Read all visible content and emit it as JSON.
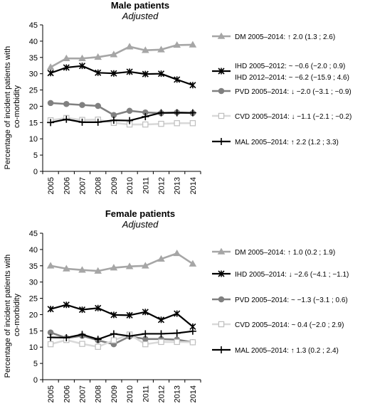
{
  "chart_data": [
    {
      "type": "line",
      "title": "Male patients",
      "subtitle": "Adjusted",
      "ylabel": "Percentage of incident patients with co-morbidity",
      "xlabel": "",
      "ylim": [
        0,
        45
      ],
      "yticks": [
        0,
        5,
        10,
        15,
        20,
        25,
        30,
        35,
        40,
        45
      ],
      "categories": [
        "2005",
        "2006",
        "2007",
        "2008",
        "2009",
        "2010",
        "2011",
        "2012",
        "2013",
        "2014"
      ],
      "grid": false,
      "legend_position": "right",
      "series": [
        {
          "name": "DM",
          "marker": "triangle",
          "color": "#a6a6a6",
          "values": [
            32.0,
            34.7,
            34.7,
            35.1,
            35.9,
            38.3,
            37.2,
            37.4,
            38.8,
            38.9
          ],
          "legend": [
            "DM  2005–2014:  ↑ 2.0 (1.3 ; 2.6)"
          ]
        },
        {
          "name": "IHD",
          "marker": "asterisk",
          "color": "#000000",
          "values": [
            30.2,
            31.9,
            32.4,
            30.3,
            30.1,
            30.6,
            29.9,
            30.0,
            28.2,
            26.5
          ],
          "legend": [
            "IHD  2005–2012:  ~ −0.6 (−2.0 ; 0.9)",
            "IHD  2012–2014:  ~ −6.2 (−15.9 ; 4.6)"
          ]
        },
        {
          "name": "PVD",
          "marker": "circle",
          "color": "#808080",
          "values": [
            21.0,
            20.7,
            20.4,
            20.1,
            17.3,
            18.6,
            18.1,
            17.9,
            18.1,
            17.9
          ],
          "legend": [
            "PVD  2005–2014:  ↓ −2.0 (−3.1 ; −0.9)"
          ]
        },
        {
          "name": "CVD",
          "marker": "square",
          "color": "#d9d9d9",
          "values": [
            15.7,
            16.4,
            15.8,
            15.9,
            14.9,
            14.4,
            14.4,
            14.6,
            14.8,
            14.8
          ],
          "legend": [
            "CVD  2005–2014:  ↓ −1.1 (−2.1 ; −0.2)"
          ]
        },
        {
          "name": "MAL",
          "marker": "plus",
          "color": "#000000",
          "values": [
            15.0,
            16.0,
            15.1,
            15.1,
            15.7,
            15.6,
            16.8,
            18.0,
            18.0,
            18.0
          ],
          "legend": [
            "MAL  2005–2014:  ↑ 2.2 (1.2 ; 3.3)"
          ]
        }
      ]
    },
    {
      "type": "line",
      "title": "Female patients",
      "subtitle": "Adjusted",
      "ylabel": "Percentage of incident patients with co-morbidity",
      "xlabel": "",
      "ylim": [
        0,
        45
      ],
      "yticks": [
        0,
        5,
        10,
        15,
        20,
        25,
        30,
        35,
        40,
        45
      ],
      "categories": [
        "2005",
        "2006",
        "2007",
        "2008",
        "2009",
        "2010",
        "2011",
        "2012",
        "2013",
        "2014"
      ],
      "grid": false,
      "legend_position": "right",
      "series": [
        {
          "name": "DM",
          "marker": "triangle",
          "color": "#a6a6a6",
          "values": [
            35.0,
            34.1,
            33.7,
            33.4,
            34.4,
            34.8,
            35.0,
            37.1,
            38.8,
            35.6
          ],
          "legend": [
            "DM  2005–2014:  ↑ 1.0 (0.2 ; 1.9)"
          ]
        },
        {
          "name": "IHD",
          "marker": "asterisk",
          "color": "#000000",
          "values": [
            21.7,
            23.0,
            21.5,
            22.0,
            19.9,
            19.8,
            20.8,
            18.4,
            20.3,
            16.3
          ],
          "legend": [
            "IHD  2005–2014:  ↓ −2.6 (−4.1 ; −1.1)"
          ]
        },
        {
          "name": "PVD",
          "marker": "circle",
          "color": "#808080",
          "values": [
            14.5,
            12.8,
            13.5,
            12.1,
            10.9,
            13.3,
            12.5,
            12.5,
            12.3,
            11.5
          ],
          "legend": [
            "PVD  2005–2014:  ~ −1.3 (−3.1 ; 0.6)"
          ]
        },
        {
          "name": "CVD",
          "marker": "square",
          "color": "#d9d9d9",
          "values": [
            10.9,
            12.2,
            11.0,
            10.1,
            12.1,
            13.9,
            10.9,
            11.6,
            11.6,
            11.5
          ],
          "legend": [
            "CVD  2005–2014:  ~ 0.4 (−2.0 ; 2.9)"
          ]
        },
        {
          "name": "MAL",
          "marker": "plus",
          "color": "#000000",
          "values": [
            13.0,
            12.9,
            13.9,
            12.4,
            14.1,
            13.4,
            14.1,
            14.1,
            14.3,
            14.9
          ],
          "legend": [
            "MAL  2005–2014:  ↑ 1.3 (0.2 ; 2.4)"
          ]
        }
      ]
    }
  ]
}
